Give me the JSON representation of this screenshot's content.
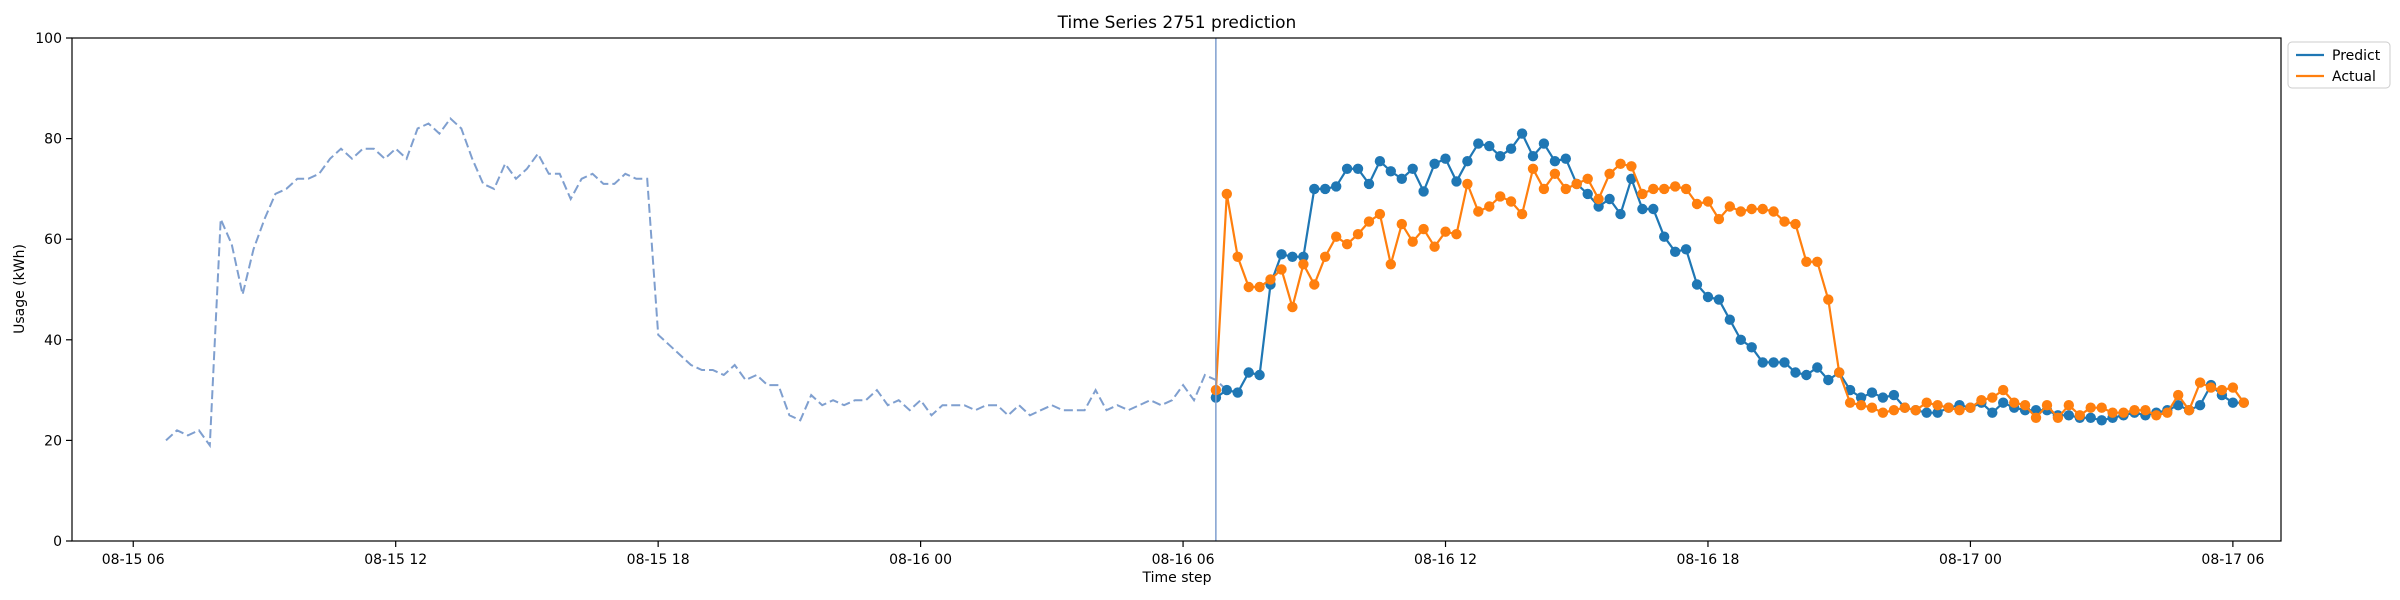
{
  "chart_data": {
    "type": "line",
    "title": "Time Series 2751 prediction",
    "xlabel": "Time step",
    "ylabel": "Usage (kWh)",
    "ylim": [
      0,
      100
    ],
    "yticks": [
      0,
      20,
      40,
      60,
      80,
      100
    ],
    "x_unit": "hours since 08-15 00:00",
    "xlim": [
      4.6,
      55.1
    ],
    "xticks": [
      {
        "pos": 6,
        "label": "08-15 06"
      },
      {
        "pos": 12,
        "label": "08-15 12"
      },
      {
        "pos": 18,
        "label": "08-15 18"
      },
      {
        "pos": 24,
        "label": "08-16 00"
      },
      {
        "pos": 30,
        "label": "08-16 06"
      },
      {
        "pos": 36,
        "label": "08-16 12"
      },
      {
        "pos": 42,
        "label": "08-16 18"
      },
      {
        "pos": 48,
        "label": "08-17 00"
      },
      {
        "pos": 54,
        "label": "08-17 06"
      }
    ],
    "grid": false,
    "legend_position": "outside top-right",
    "forecast_start": 30.75,
    "history": {
      "x_start": 6.75,
      "x_step": 0.25,
      "style": "dashed",
      "values": [
        20,
        22,
        21,
        22,
        19,
        64,
        59,
        49,
        58,
        64,
        69,
        70,
        72,
        72,
        73,
        76,
        78,
        76,
        78,
        78,
        76,
        78,
        76,
        82,
        83,
        81,
        84,
        82,
        76,
        71,
        70,
        75,
        72,
        74,
        77,
        73,
        73,
        68,
        72,
        73,
        71,
        71,
        73,
        72,
        72,
        41,
        39,
        37,
        35,
        34,
        34,
        33,
        35,
        32,
        33,
        31,
        31,
        25,
        24,
        29,
        27,
        28,
        27,
        28,
        28,
        30,
        27,
        28,
        26,
        28,
        25,
        27,
        27,
        27,
        26,
        27,
        27,
        25,
        27,
        25,
        26,
        27,
        26,
        26,
        26,
        30,
        26,
        27,
        26,
        27,
        28,
        27,
        28,
        31,
        28,
        33,
        32,
        30
      ]
    },
    "series": [
      {
        "name": "Predict",
        "color": "#1f77b4",
        "x_start": 30.75,
        "x_step": 0.25,
        "values": [
          28.5,
          30,
          29.5,
          33.5,
          33,
          51,
          57,
          56.5,
          56.5,
          70,
          70,
          70.5,
          74,
          74,
          71,
          75.5,
          73.5,
          72,
          74,
          69.5,
          75,
          76,
          71.5,
          75.5,
          79,
          78.5,
          76.5,
          78,
          81,
          76.5,
          79,
          75.5,
          76,
          71,
          69,
          66.5,
          68,
          65,
          72,
          66,
          66,
          60.5,
          57.5,
          58,
          51,
          48.5,
          48,
          44,
          40,
          38.5,
          35.5,
          35.5,
          35.5,
          33.5,
          33,
          34.5,
          32,
          33.5,
          30,
          28.5,
          29.5,
          28.5,
          29,
          26.5,
          26,
          25.5,
          25.5,
          26.5,
          27,
          26.5,
          27.5,
          25.5,
          27.5,
          26.5,
          26,
          26,
          26,
          25,
          25,
          24.5,
          24.5,
          24,
          24.5,
          25,
          25.5,
          25,
          25.5,
          26,
          27,
          26,
          27,
          31,
          29,
          27.5,
          27.5
        ]
      },
      {
        "name": "Actual",
        "color": "#ff7f0e",
        "x_start": 30.75,
        "x_step": 0.25,
        "values": [
          30,
          69,
          56.5,
          50.5,
          50.5,
          52,
          54,
          46.5,
          55,
          51,
          56.5,
          60.5,
          59,
          61,
          63.5,
          65,
          55,
          63,
          59.5,
          62,
          58.5,
          61.5,
          61,
          71,
          65.5,
          66.5,
          68.5,
          67.5,
          65,
          74,
          70,
          73,
          70,
          71,
          72,
          68,
          73,
          75,
          74.5,
          69,
          70,
          70,
          70.5,
          70,
          67,
          67.5,
          64,
          66.5,
          65.5,
          66,
          66,
          65.5,
          63.5,
          63,
          55.5,
          55.5,
          48,
          33.5,
          27.5,
          27,
          26.5,
          25.5,
          26,
          26.5,
          26,
          27.5,
          27,
          26.5,
          26,
          26.5,
          28,
          28.5,
          30,
          27.5,
          27,
          24.5,
          27,
          24.5,
          27,
          25,
          26.5,
          26.5,
          25.5,
          25.5,
          26,
          26,
          25,
          25.5,
          29,
          26,
          31.5,
          30.5,
          30,
          30.5,
          27.5
        ]
      }
    ]
  }
}
